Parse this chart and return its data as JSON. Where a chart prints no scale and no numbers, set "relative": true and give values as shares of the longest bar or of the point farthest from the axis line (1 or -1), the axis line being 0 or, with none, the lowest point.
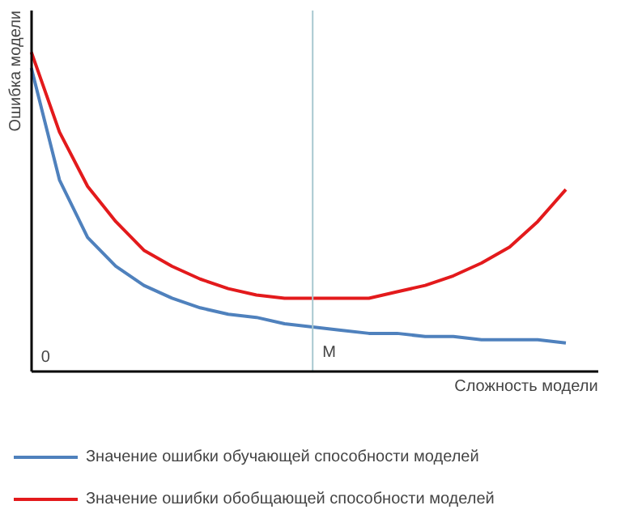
{
  "chart_data": {
    "type": "line",
    "relative": true,
    "xlabel": "Сложность модели",
    "ylabel": "Ошибка модели",
    "legend": "bottom",
    "line_style": "solid",
    "categories": [
      null,
      null,
      null,
      null,
      null,
      null,
      null,
      null,
      null,
      null,
      null,
      null,
      null,
      null,
      null,
      null,
      null,
      null,
      null,
      null
    ],
    "annotations": [
      "0",
      "M"
    ],
    "series": [
      {
        "name": "Значение ошибки обучающей способности моделей",
        "color": "#4f81bd",
        "values": [
          0.95,
          0.6,
          0.42,
          0.33,
          0.27,
          0.23,
          0.2,
          0.18,
          0.17,
          0.15,
          0.14,
          0.13,
          0.12,
          0.12,
          0.11,
          0.11,
          0.1,
          0.1,
          0.1,
          0.09
        ]
      },
      {
        "name": "Значение ошибки обобщающей способности моделей",
        "color": "#e31a1c",
        "values": [
          1,
          0.75,
          0.58,
          0.47,
          0.38,
          0.33,
          0.29,
          0.26,
          0.24,
          0.23,
          0.23,
          0.23,
          0.23,
          0.25,
          0.27,
          0.3,
          0.34,
          0.39,
          0.47,
          0.57
        ]
      }
    ]
  }
}
